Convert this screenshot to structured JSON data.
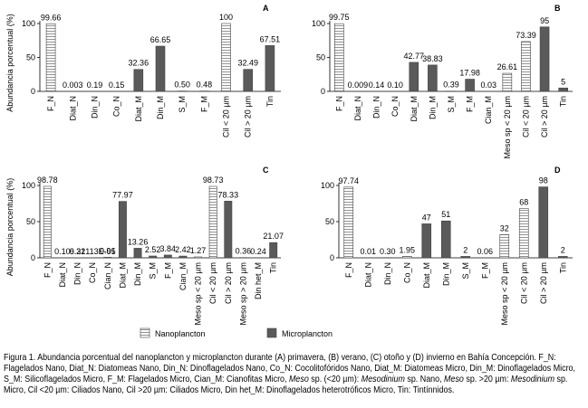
{
  "chart_data": [
    {
      "type": "bar",
      "panel_label": "A",
      "ylabel": "Abundancia porcentual (%)",
      "categories": [
        "F_N",
        "Diat_N",
        "Din_N",
        "Co_N",
        "Diat_M",
        "Din_M",
        "S_M",
        "F_M",
        "Cil < 20 µm",
        "Cil > 20 µm",
        "Tin"
      ],
      "values": [
        99.66,
        0.003,
        0.19,
        0.15,
        32.36,
        66.65,
        0.5,
        0.48,
        100,
        32.49,
        67.51
      ],
      "value_labels": [
        "99.66",
        "0.003",
        "0.19",
        "0.15",
        "32.36",
        "66.65",
        "0.50",
        "0.48",
        "100",
        "32.49",
        "67.51"
      ],
      "colors": [
        "#ffffff",
        "#ffffff",
        "#ffffff",
        "#ffffff",
        "#5a5a5a",
        "#5a5a5a",
        "#5a5a5a",
        "#5a5a5a",
        "#ffffff",
        "#5a5a5a",
        "#5a5a5a"
      ],
      "ylim": [
        0,
        100
      ],
      "yticks": [
        0,
        50,
        100
      ]
    },
    {
      "type": "bar",
      "panel_label": "B",
      "categories": [
        "F_N",
        "Diat_N",
        "Din_N",
        "Co_N",
        "Diat_M",
        "Din_M",
        "S_M",
        "F_M",
        "Cian_M",
        "Meso sp < 20 µm",
        "Cil < 20 µm",
        "Cil > 20 µm",
        "Tin"
      ],
      "values": [
        99.75,
        0.009,
        0.14,
        0.1,
        42.77,
        38.83,
        0.39,
        17.98,
        0.03,
        26.61,
        73.39,
        95,
        5
      ],
      "value_labels": [
        "99.75",
        "0.009",
        "0.14",
        "0.10",
        "42.77",
        "38.83",
        "0.39",
        "17.98",
        "0.03",
        "26.61",
        "73.39",
        "95",
        "5"
      ],
      "colors": [
        "#ffffff",
        "#ffffff",
        "#ffffff",
        "#ffffff",
        "#5a5a5a",
        "#5a5a5a",
        "#5a5a5a",
        "#5a5a5a",
        "#5a5a5a",
        "#ffffff",
        "#ffffff",
        "#5a5a5a",
        "#5a5a5a"
      ],
      "ylim": [
        0,
        100
      ],
      "yticks": [
        0,
        50,
        100
      ]
    },
    {
      "type": "bar",
      "panel_label": "C",
      "ylabel": "Abundancia porcentual (%)",
      "categories": [
        "F_N",
        "Diat_N",
        "Din_N",
        "Co_N",
        "Cian_N",
        "Diat_M",
        "Din_M",
        "S_M",
        "F_M",
        "Cian_M",
        "Meso sp < 20 µm",
        "Cil < 20 µm",
        "Cil > 20 µm",
        "Meso sp > 20 µm",
        "Din het_M",
        "Tin"
      ],
      "values": [
        98.78,
        0.1,
        0.21,
        6.32113e-05,
        0.91,
        77.97,
        13.26,
        2.52,
        3.84,
        2.42,
        1.27,
        98.73,
        78.33,
        0.36,
        0.24,
        21.07
      ],
      "value_labels": [
        "98.78",
        "0.10",
        "0.21",
        "6.32113E-05",
        "0.91",
        "77.97",
        "13.26",
        "2.52",
        "3.84",
        "2.42",
        "1.27",
        "98.73",
        "78.33",
        "0.36",
        "0.24",
        "21.07"
      ],
      "colors": [
        "#ffffff",
        "#ffffff",
        "#ffffff",
        "#ffffff",
        "#ffffff",
        "#5a5a5a",
        "#5a5a5a",
        "#5a5a5a",
        "#5a5a5a",
        "#5a5a5a",
        "#ffffff",
        "#ffffff",
        "#5a5a5a",
        "#5a5a5a",
        "#5a5a5a",
        "#5a5a5a"
      ],
      "ylim": [
        0,
        100
      ],
      "yticks": [
        0,
        50,
        100
      ]
    },
    {
      "type": "bar",
      "panel_label": "D",
      "categories": [
        "F_N",
        "Diat_N",
        "Din_N",
        "Co_N",
        "Diat_M",
        "Din_M",
        "S_M",
        "F_M",
        "Meso sp < 20 µm",
        "Cil < 20 µm",
        "Cil > 20 µm",
        "Tin"
      ],
      "values": [
        97.74,
        0.01,
        0.3,
        1.95,
        47,
        51,
        2,
        0.06,
        32,
        68,
        98,
        2
      ],
      "value_labels": [
        "97.74",
        "0.01",
        "0.30",
        "1.95",
        "47",
        "51",
        "2",
        "0.06",
        "32",
        "68",
        "98",
        "2"
      ],
      "colors": [
        "#ffffff",
        "#ffffff",
        "#ffffff",
        "#ffffff",
        "#5a5a5a",
        "#5a5a5a",
        "#5a5a5a",
        "#5a5a5a",
        "#ffffff",
        "#ffffff",
        "#5a5a5a",
        "#5a5a5a"
      ],
      "ylim": [
        0,
        100
      ],
      "yticks": [
        0,
        50,
        100
      ]
    }
  ],
  "legend": {
    "items": [
      {
        "name": "Nanoplancton",
        "color": "#ffffff",
        "hatch": true
      },
      {
        "name": "Microplancton",
        "color": "#5a5a5a"
      }
    ]
  },
  "caption": [
    {
      "text": "Figura 1. Abundancia porcentual del nanoplancton y microplancton durante (A) primavera, (B) verano, (C) otoño y (D) invierno en Bahía Concepción. F_N: Flagelados Nano, Diat_N: Diatomeas Nano, Din_N: Dinoflagelados Nano, Co_N: Cocolitofóridos Nano, Diat_M: Diatomeas Micro, Din_M: Dinoflagelados Micro, S_M: Silicoflagelados Micro, F_M: Flagelados Micro, Cian_M: Cianofitas Micro, "
    },
    {
      "text": "Meso",
      "italic": true
    },
    {
      "text": " sp. (<20 µm): "
    },
    {
      "text": "Mesodinium",
      "italic": true
    },
    {
      "text": " sp. Nano, "
    },
    {
      "text": "Meso",
      "italic": true
    },
    {
      "text": " sp. >20 µm: "
    },
    {
      "text": "Mesodinium",
      "italic": true
    },
    {
      "text": " sp. Micro, Cil <20 µm: Ciliados Nano, Cil >20 µm: Ciliados Micro, Din het_M: Dinoflagelados heterotróficos Micro, Tin: Tintínnidos."
    }
  ]
}
